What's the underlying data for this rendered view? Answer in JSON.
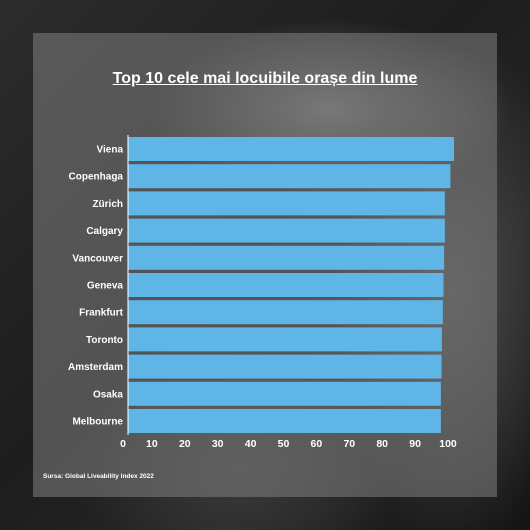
{
  "source": "Sursa: Global Liveability Index 2022",
  "chart_data": {
    "type": "bar",
    "orientation": "horizontal",
    "title": "Top 10 cele mai locuibile orașe din lume",
    "categories": [
      "Viena",
      "Copenhaga",
      "Zürich",
      "Calgary",
      "Vancouver",
      "Geneva",
      "Frankfurt",
      "Toronto",
      "Amsterdam",
      "Osaka",
      "Melbourne"
    ],
    "values": [
      99.1,
      98.0,
      96.3,
      96.3,
      96.1,
      95.9,
      95.7,
      95.4,
      95.3,
      95.1,
      95.1
    ],
    "xlim": [
      0,
      100
    ],
    "ticks": [
      0,
      10,
      20,
      30,
      40,
      50,
      60,
      70,
      80,
      90,
      100
    ],
    "xlabel": "",
    "ylabel": "",
    "grid": false,
    "bar_color": "#5fb6e6"
  }
}
